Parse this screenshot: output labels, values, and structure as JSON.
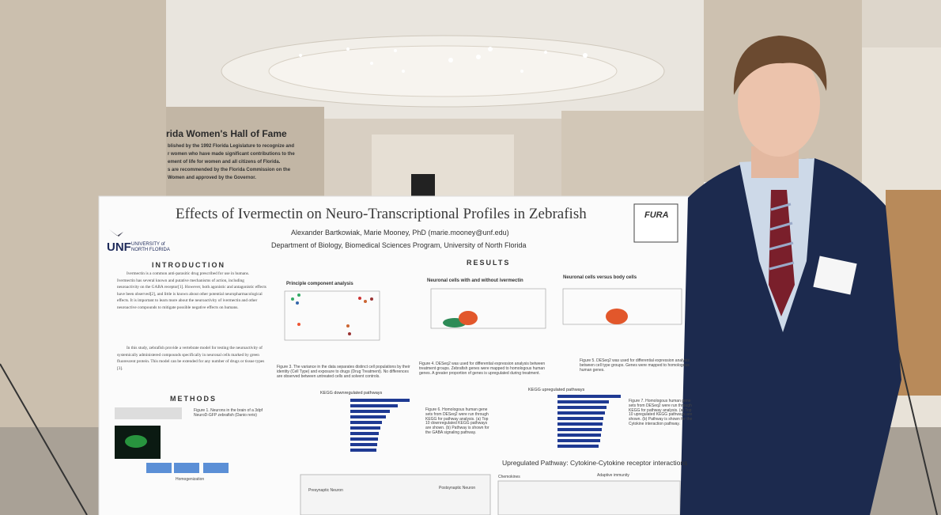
{
  "sign": {
    "title": "rida Women's Hall of Fame",
    "lines": [
      "blished by the 1992 Florida Legislature to recognize and",
      "r women who have made significant contributions to the",
      "ement of life for women and all citizens of Florida.",
      "s are recommended by the Florida Commission on the",
      "Women and approved by the Governor."
    ]
  },
  "poster": {
    "title": "Effects of Ivermectin on Neuro-Transcriptional Profiles in Zebrafish",
    "authors": "Alexander Bartkowiak, Marie Mooney, PhD (marie.mooney@unf.edu)",
    "department": "Department of Biology, Biomedical Sciences Program, University of North Florida",
    "logo": {
      "short": "UNF",
      "name": "UNIVERSITY of NORTH FLORIDA"
    },
    "badge": "FURA",
    "introduction": {
      "heading": "INTRODUCTION",
      "paragraphs": [
        "Ivermectin is a common anti-parasitic drug prescribed for use in humans. Ivermectin has several known and putative mechanisms of action, including neuroactivity on the GABA receptor[1]. However, both agonistic and antagonistic effects have been observed[2], and little is known about other potential neuropharmacological effects. It is important to learn more about the neuroactivity of ivermectin and other neuroactive compounds to mitigate possible negative effects on humans.",
        "In this study, zebrafish provide a vertebrate model for testing the neuroactivity of systemically administered compounds specifically in neuronal cells marked by green fluorescent protein. This model can be extended for any number of drugs or tissue types [3]."
      ]
    },
    "methods": {
      "heading": "METHODS",
      "figure1": "Figure 1. Neurons in the brain of a 3dpf NeuroD-GFP zebrafish (Danio rerio)",
      "step": "Homogenization"
    },
    "results": {
      "heading": "RESULTS",
      "pca_title": "Principle component analysis",
      "volcano1_title": "Neuronal cells with and without ivermectin",
      "volcano2_title": "Neuronal cells versus body cells",
      "figure3": "Figure 3. The variance in the data separates distinct cell populations by their identity (Cell Type) and exposure to drugs (Drug Treatment). No differences are observed between untreated cells and solvent controls.",
      "figure4": "Figure 4. DESeq2 was used for differential expression analysis between treatment groups. Zebrafish genes were mapped to homologous human genes. A greater proportion of genes is upregulated during treatment.",
      "figure5": "Figure 5. DESeq2 was used for differential expression analysis between cell type groups. Genes were mapped to homologous human genes.",
      "kegg_down": "KEGG downregulated pathways",
      "kegg_up": "KEGG upregulated pathways",
      "figure6": "Figure 6. Homologous human gene sets from DESeq2 were run through KEGG for pathway analysis. (a) Top 10 downregulated KEGG pathways are shown. (b) Pathway is shown for the GABA signaling pathway.",
      "figure7": "Figure 7. Homologous human gene sets from DESeq2 were run through KEGG for pathway analysis. (a) Top 10 upregulated KEGG pathways are shown. (b) Pathway is shown for the Cytokine interaction pathway.",
      "cytokine_title": "Upregulated Pathway: Cytokine-Cytokine receptor interactions",
      "presynaptic": "Presynaptic Neuron",
      "postsynaptic": "Postsynaptic Neuron",
      "chemokines": "Chemokines",
      "adaptive": "Adaptive immunity"
    }
  }
}
